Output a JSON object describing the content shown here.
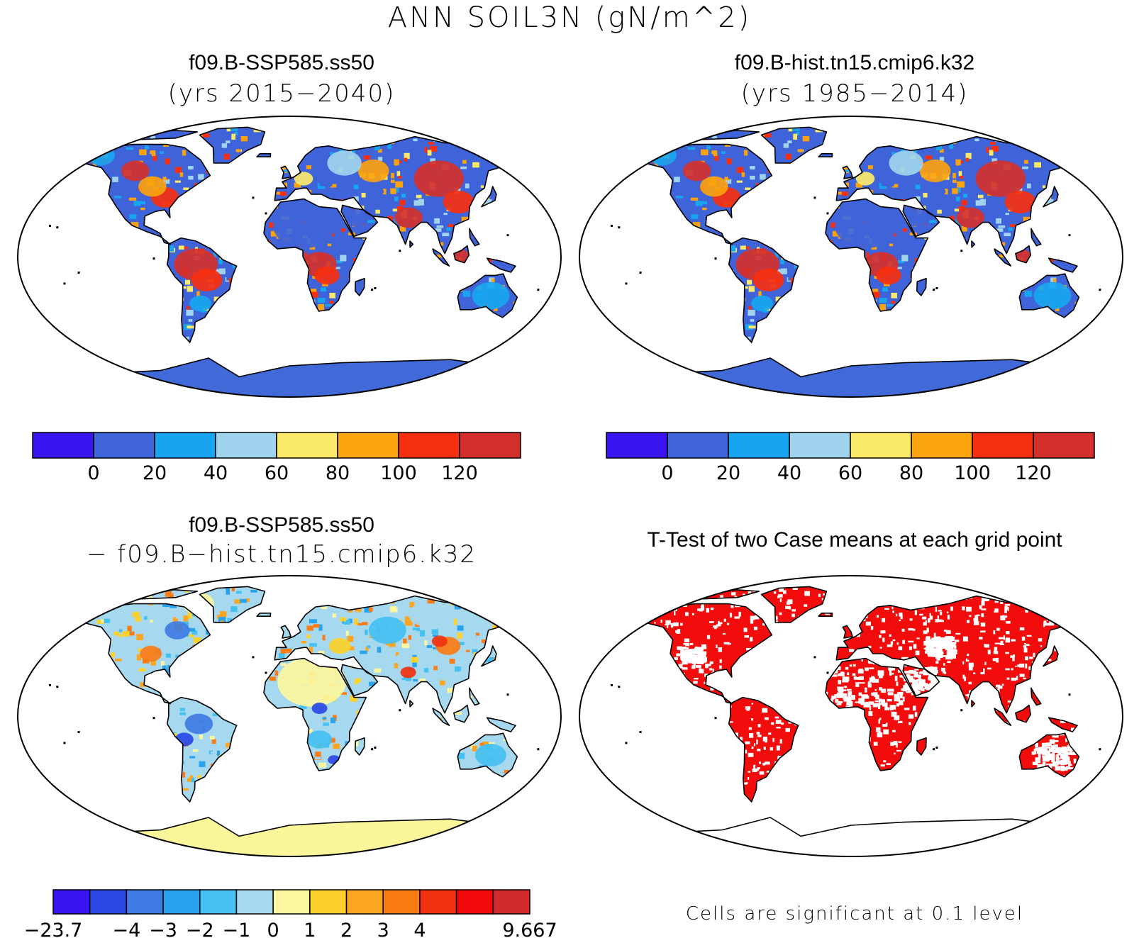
{
  "title": "ANN SOIL3N (gN/m^2)",
  "panels": {
    "top_left": {
      "title": "f09.B-SSP585.ss50",
      "subtitle": "(yrs 2015−2040)"
    },
    "top_right": {
      "title": "f09.B-hist.tn15.cmip6.k32",
      "subtitle": "(yrs 1985−2014)"
    },
    "bottom_left": {
      "title": "f09.B-SSP585.ss50",
      "subtitle": "− f09.B−hist.tn15.cmip6.k32"
    },
    "bottom_right": {
      "title": "T-Test of two Case means at each grid point",
      "footer": "Cells are significant at 0.1 level"
    }
  },
  "colorbars": {
    "abs": {
      "colors": [
        "#3a14f0",
        "#3f63d9",
        "#18a5ef",
        "#9fd3ee",
        "#fbe96a",
        "#fba20f",
        "#f52f0f",
        "#d3302d"
      ],
      "labels": [
        "0",
        "20",
        "40",
        "60",
        "80",
        "100",
        "120"
      ]
    },
    "diff": {
      "colors": [
        "#3a14f0",
        "#2a49e6",
        "#3f7ce3",
        "#2aa3ef",
        "#45c0f2",
        "#a6d9ef",
        "#fdf7a0",
        "#fcd02d",
        "#fba523",
        "#fb7b15",
        "#f0320e",
        "#f20a0a",
        "#d02a2a"
      ],
      "labels": [
        "−23.7",
        "−4",
        "−3",
        "−2",
        "−1",
        "0",
        "1",
        "2",
        "3",
        "4",
        "9.667"
      ]
    }
  },
  "colors": {
    "ocean": "#ffffff",
    "antarctica_abs": "#4169d8",
    "antarctica_diff": "#fcf69a",
    "significant": "#f20c0c",
    "coastline": "#000000"
  }
}
